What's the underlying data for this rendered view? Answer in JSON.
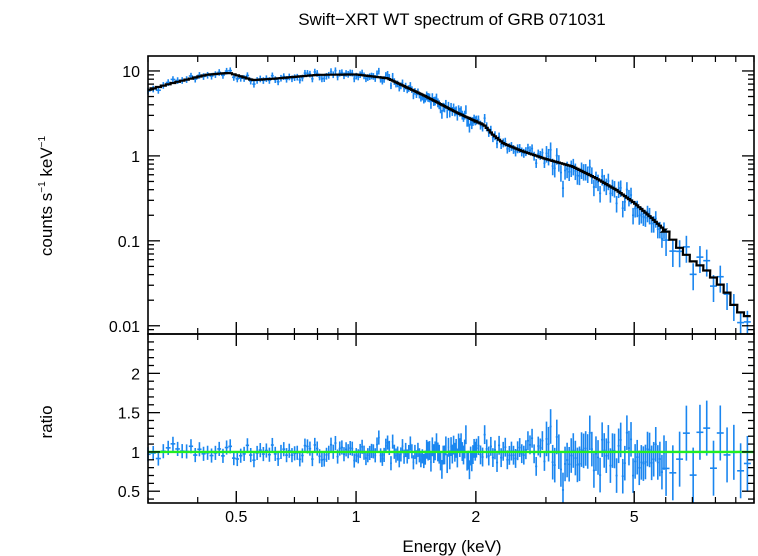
{
  "title": "Swift−XRT WT spectrum of GRB 071031",
  "chart_data": [
    {
      "type": "scatter",
      "panel": "spectrum",
      "xlabel": "Energy (keV)",
      "ylabel_parts": [
        "counts s",
        "−1",
        " keV",
        "−1"
      ],
      "xscale": "log",
      "yscale": "log",
      "xlim": [
        0.3,
        10
      ],
      "ylim": [
        0.008,
        15
      ],
      "ytick_values": [
        0.01,
        0.1,
        1,
        10
      ],
      "ytick_labels": [
        "0.01",
        "0.1",
        "1",
        "10"
      ],
      "colors": {
        "data": "#1a86f0",
        "model": "#000000"
      },
      "series": [
        {
          "role": "data",
          "x": [],
          "y": []
        },
        {
          "role": "model",
          "step": true,
          "x": [],
          "y": []
        }
      ]
    },
    {
      "type": "scatter",
      "panel": "ratio",
      "xlabel": "Energy (keV)",
      "ylabel": "ratio",
      "xscale": "log",
      "yscale": "linear",
      "xlim": [
        0.3,
        10
      ],
      "ylim": [
        0.35,
        2.45
      ],
      "xtick_values": [
        0.5,
        1,
        2,
        5
      ],
      "xtick_labels": [
        "0.5",
        "1",
        "2",
        "5"
      ],
      "ytick_values": [
        0.5,
        1,
        1.5,
        2
      ],
      "ytick_labels": [
        "0.5",
        "1",
        "1.5",
        "2"
      ],
      "reference_line": 1,
      "colors": {
        "data": "#1a86f0",
        "reference": "#22ee22"
      },
      "series": [
        {
          "role": "data",
          "x": [],
          "y": []
        }
      ]
    }
  ]
}
